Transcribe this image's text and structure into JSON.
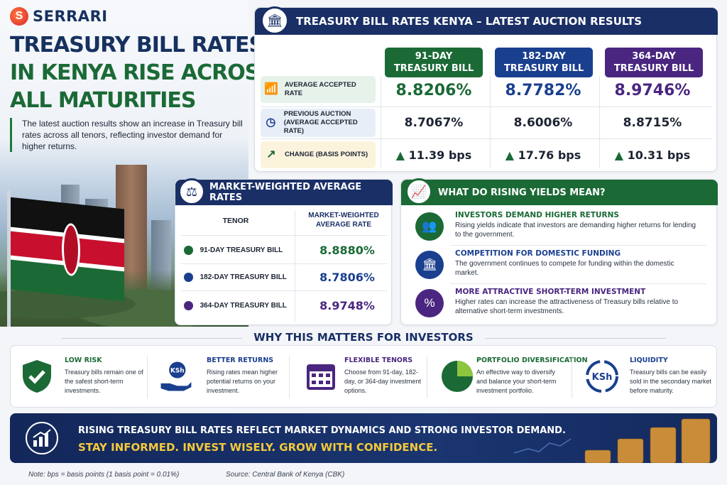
{
  "brand": {
    "name": "SERRARI",
    "mark": "S"
  },
  "headline": {
    "line1": "TREASURY BILL RATES",
    "line2": "IN KENYA RISE ACROSS",
    "line3": "ALL MATURITIES",
    "intro": "The latest auction results show an increase in Treasury bill rates across all tenors, reflecting investor demand for higher returns."
  },
  "auction": {
    "title": "TREASURY BILL RATES KENYA – LATEST AUCTION RESULTS",
    "columns": [
      {
        "line1": "91-DAY",
        "line2": "TREASURY BILL",
        "color": "#1b6a36"
      },
      {
        "line1": "182-DAY",
        "line2": "TREASURY BILL",
        "color": "#1a3f8f"
      },
      {
        "line1": "364-DAY",
        "line2": "TREASURY BILL",
        "color": "#4a2680"
      }
    ],
    "rows": {
      "accepted": {
        "label": "AVERAGE ACCEPTED RATE",
        "values": [
          "8.8206%",
          "8.7782%",
          "8.9746%"
        ]
      },
      "previous": {
        "label1": "PREVIOUS AUCTION",
        "label2": "(AVERAGE ACCEPTED RATE)",
        "values": [
          "8.7067%",
          "8.6006%",
          "8.8715%"
        ]
      },
      "change": {
        "label": "CHANGE (BASIS POINTS)",
        "values": [
          "11.39 bps",
          "17.76 bps",
          "10.31 bps"
        ]
      }
    }
  },
  "market_weighted": {
    "title": "MARKET-WEIGHTED AVERAGE RATES",
    "col_tenor": "TENOR",
    "col_rate1": "MARKET-WEIGHTED",
    "col_rate2": "AVERAGE RATE",
    "rows": [
      {
        "label": "91-DAY TREASURY BILL",
        "value": "8.8880%",
        "color": "#1b6a36"
      },
      {
        "label": "182-DAY TREASURY BILL",
        "value": "8.7806%",
        "color": "#1a3f8f"
      },
      {
        "label": "364-DAY TREASURY BILL",
        "value": "8.9748%",
        "color": "#4a2680"
      }
    ]
  },
  "rising_yields": {
    "title": "WHAT DO RISING YIELDS MEAN?",
    "items": [
      {
        "title": "INVESTORS DEMAND HIGHER RETURNS",
        "desc": "Rising yields indicate that investors are demanding higher returns for lending to the government.",
        "color": "#1b6a36"
      },
      {
        "title": "COMPETITION FOR DOMESTIC FUNDING",
        "desc": "The government continues to compete for funding within the domestic market.",
        "color": "#1a3f8f"
      },
      {
        "title": "MORE ATTRACTIVE SHORT-TERM INVESTMENT",
        "desc": "Higher rates can increase the attractiveness of Treasury bills relative to alternative short-term investments.",
        "color": "#4a2680"
      }
    ]
  },
  "why": {
    "title": "WHY THIS MATTERS FOR INVESTORS",
    "items": [
      {
        "title": "LOW RISK",
        "desc": "Treasury bills remain one of the safest short-term investments.",
        "color": "#1b6a36"
      },
      {
        "title": "BETTER RETURNS",
        "desc": "Rising rates mean higher potential returns on your investment.",
        "color": "#1a3f8f"
      },
      {
        "title": "FLEXIBLE TENORS",
        "desc": "Choose from 91-day, 182-day, or 364-day investment options.",
        "color": "#4a2680"
      },
      {
        "title": "PORTFOLIO DIVERSIFICATION",
        "desc": "An effective way to diversify and balance your short-term investment portfolio.",
        "color": "#1b6a36"
      },
      {
        "title": "LIQUIDITY",
        "desc": "Treasury bills can be easily sold in the secondary market before maturity.",
        "color": "#1a3f8f"
      }
    ],
    "ksh": "KSh"
  },
  "banner": {
    "line1": "RISING TREASURY BILL RATES REFLECT MARKET DYNAMICS AND STRONG INVESTOR DEMAND.",
    "line2": "STAY INFORMED. INVEST WISELY. GROW WITH CONFIDENCE."
  },
  "footer": {
    "note": "Note: bps = basis points (1 basis point = 0.01%)",
    "source": "Source: Central Bank of Kenya (CBK)"
  },
  "icons": {
    "accepted": "bar-growth-icon",
    "previous": "clock-icon",
    "change": "trend-up-icon",
    "change_marker": "▲"
  }
}
